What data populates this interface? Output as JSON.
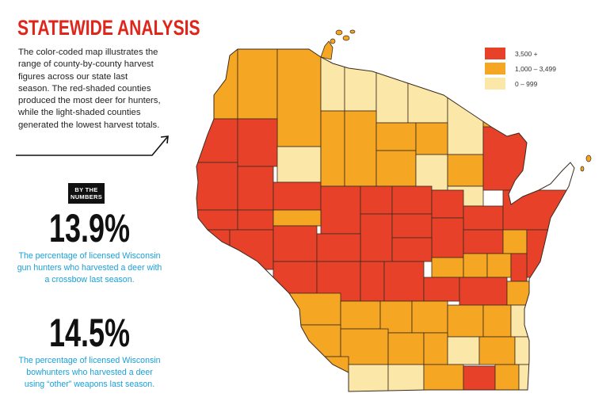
{
  "title": "STATEWIDE ANALYSIS",
  "intro": "The color-coded map illustrates the range of county-by-county harvest figures across our state last season. The red-shaded counties produced the most deer for hunters, while the light-shaded counties generated the lowest harvest totals.",
  "badge": "BY THE NUMBERS",
  "stats": [
    {
      "value": "13.9%",
      "caption": "The percentage of licensed Wisconsin gun hunters who harvested a deer with a crossbow last season."
    },
    {
      "value": "14.5%",
      "caption": "The percentage of licensed Wisconsin bowhunters who harvested a deer using “other” weapons last season."
    }
  ],
  "legend": [
    {
      "label": "3,500 +",
      "color": "#e8412a"
    },
    {
      "label": "1,000 – 3,499",
      "color": "#f5a623"
    },
    {
      "label": "0 – 999",
      "color": "#fbe7a8"
    }
  ],
  "colors": {
    "high": "#e8412a",
    "mid": "#f5a623",
    "low": "#fbe7a8",
    "border": "#3a2a20",
    "title": "#e0251b",
    "caption": "#1aa0d8"
  }
}
